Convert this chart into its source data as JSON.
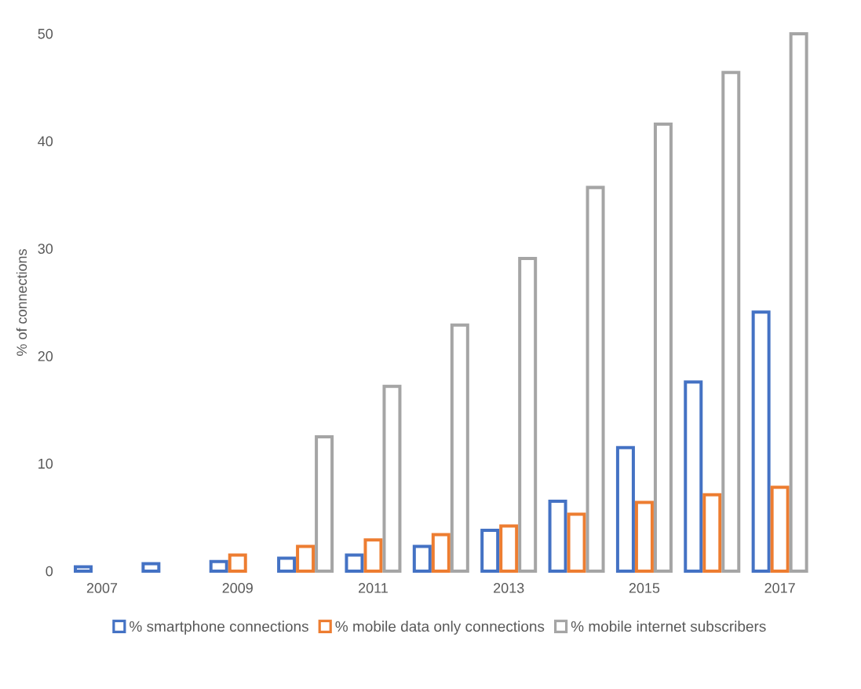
{
  "chart_data": {
    "type": "bar",
    "categories": [
      "2007",
      null,
      "2009",
      null,
      "2011",
      null,
      "2013",
      null,
      "2015",
      null,
      "2017"
    ],
    "ylabel": "% of connections",
    "ylim": [
      0,
      50
    ],
    "yticks": [
      0,
      10,
      20,
      30,
      40,
      50
    ],
    "legend": "bottom",
    "series": [
      {
        "name": "% smartphone connections",
        "color": "#4472c4",
        "values": [
          0.4,
          0.7,
          0.9,
          1.2,
          1.5,
          2.3,
          3.8,
          6.5,
          11.5,
          17.6,
          24.1
        ]
      },
      {
        "name": "% mobile data only connections",
        "color": "#ed7d31",
        "values": [
          null,
          null,
          1.5,
          2.3,
          2.9,
          3.4,
          4.2,
          5.3,
          6.4,
          7.1,
          7.8
        ]
      },
      {
        "name": "% mobile internet subscribers",
        "color": "#a5a5a5",
        "values": [
          null,
          null,
          null,
          12.5,
          17.2,
          22.9,
          29.1,
          35.7,
          41.6,
          46.4,
          50
        ]
      }
    ]
  }
}
